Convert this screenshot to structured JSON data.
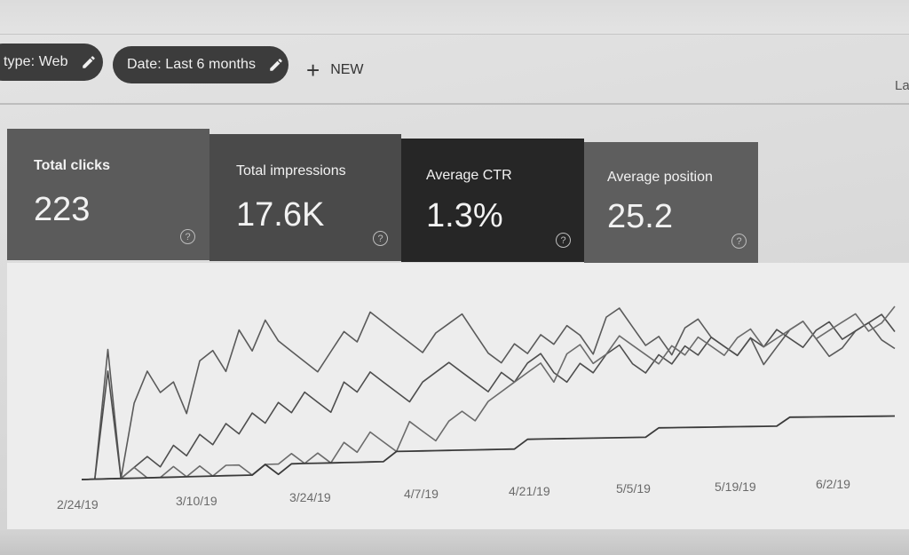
{
  "filters": {
    "type_label": "type: Web",
    "date_label": "Date: Last 6 months",
    "new_label": "NEW",
    "right_cutoff": "La"
  },
  "metrics": [
    {
      "label": "Total clicks",
      "value": "223"
    },
    {
      "label": "Total impressions",
      "value": "17.6K"
    },
    {
      "label": "Average CTR",
      "value": "1.3%"
    },
    {
      "label": "Average position",
      "value": "25.2"
    }
  ],
  "icons": {
    "edit": "pencil-icon",
    "add": "plus-icon",
    "help": "help-circle-icon"
  },
  "colors": {
    "clicks_card": "#5b5b5b",
    "impressions_card": "#4a4a4a",
    "ctr_card": "#262626",
    "position_card": "#5e5e5e"
  },
  "chart_data": {
    "type": "line",
    "x_tick_labels": [
      "2/24/19",
      "3/10/19",
      "3/24/19",
      "4/7/19",
      "4/21/19",
      "5/5/19",
      "5/19/19",
      "6/2/19"
    ],
    "series": [
      {
        "values": [
          0,
          0,
          12,
          0,
          7,
          10,
          8,
          9,
          6,
          11,
          12,
          10,
          14,
          12,
          15,
          13,
          12,
          11,
          10,
          12,
          14,
          13,
          16,
          15,
          14,
          13,
          12,
          14,
          15,
          16,
          14,
          12,
          11,
          13,
          12,
          14,
          13,
          15,
          14,
          12,
          16,
          17,
          15,
          13,
          14,
          12,
          15,
          16,
          14,
          13,
          12,
          14,
          11,
          13,
          15,
          16,
          14,
          12,
          13,
          15,
          16,
          14,
          13
        ]
      },
      {
        "values": [
          0,
          0,
          10,
          0,
          1,
          2,
          1,
          3,
          2,
          4,
          3,
          5,
          4,
          6,
          5,
          7,
          6,
          8,
          7,
          6,
          9,
          8,
          10,
          9,
          8,
          7,
          9,
          10,
          11,
          10,
          9,
          8,
          10,
          9,
          11,
          12,
          10,
          9,
          11,
          10,
          12,
          13,
          11,
          10,
          12,
          11,
          13,
          12,
          14,
          13,
          12,
          14,
          13,
          15,
          14,
          13,
          15,
          16,
          14,
          15,
          16,
          17,
          15
        ]
      },
      {
        "values": [
          0,
          0,
          0,
          0,
          1,
          0,
          0,
          1,
          0,
          1,
          0,
          1,
          1,
          0,
          1,
          1,
          2,
          1,
          2,
          1,
          3,
          2,
          4,
          3,
          2,
          5,
          4,
          3,
          5,
          6,
          5,
          7,
          8,
          9,
          10,
          11,
          9,
          12,
          13,
          11,
          12,
          14,
          13,
          12,
          11,
          13,
          12,
          14,
          13,
          12,
          14,
          15,
          13,
          14,
          15,
          16,
          14,
          15,
          16,
          17,
          15,
          16,
          18
        ]
      },
      {
        "values": [
          0,
          0,
          0,
          0,
          0,
          0,
          0,
          0,
          0,
          0,
          0,
          0,
          0,
          0,
          1,
          0,
          1,
          1,
          1,
          1,
          1,
          1,
          1,
          1,
          2,
          2,
          2,
          2,
          2,
          2,
          2,
          2,
          2,
          2,
          3,
          3,
          3,
          3,
          3,
          3,
          3,
          3,
          3,
          3,
          4,
          4,
          4,
          4,
          4,
          4,
          4,
          4,
          4,
          4,
          5,
          5,
          5,
          5,
          5,
          5,
          5,
          5,
          5
        ]
      }
    ]
  }
}
